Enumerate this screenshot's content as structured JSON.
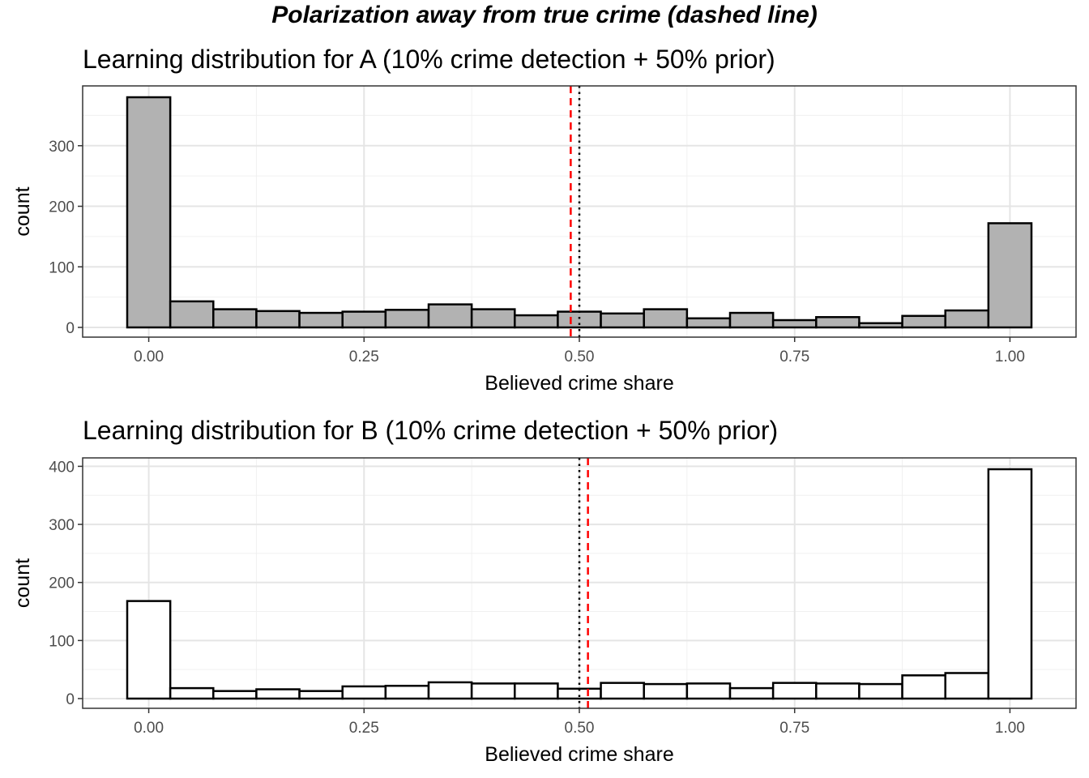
{
  "title": "Polarization away from true crime (dashed line)",
  "chart_data": [
    {
      "type": "bar",
      "title": "Learning distribution for A (10% crime detection + 50% prior)",
      "xlabel": "Believed crime share",
      "ylabel": "count",
      "xlim": [
        -0.025,
        1.025
      ],
      "ylim": [
        0,
        380
      ],
      "x_ticks": [
        0,
        0.25,
        0.5,
        0.75,
        1
      ],
      "x_tick_labels": [
        "0.00",
        "0.25",
        "0.50",
        "0.75",
        "1.00"
      ],
      "y_ticks": [
        0,
        100,
        200,
        300
      ],
      "y_tick_labels": [
        "0",
        "100",
        "200",
        "300"
      ],
      "bin_width": 0.05,
      "bin_centers": [
        0,
        0.05,
        0.1,
        0.15,
        0.2,
        0.25,
        0.3,
        0.35,
        0.4,
        0.45,
        0.5,
        0.55,
        0.6,
        0.65,
        0.7,
        0.75,
        0.8,
        0.85,
        0.9,
        0.95,
        1
      ],
      "values": [
        380,
        43,
        30,
        27,
        24,
        26,
        29,
        38,
        30,
        20,
        26,
        23,
        30,
        15,
        24,
        12,
        17,
        7,
        19,
        28,
        172
      ],
      "fill": "#b2b2b2",
      "dashed_line_x": 0.49,
      "dotted_line_x": 0.5,
      "dashed_color": "#ff0000",
      "dotted_color": "#000000",
      "grid": true
    },
    {
      "type": "bar",
      "title": "Learning distribution for B (10% crime detection + 50% prior)",
      "xlabel": "Believed crime share",
      "ylabel": "count",
      "xlim": [
        -0.025,
        1.025
      ],
      "ylim": [
        0,
        395
      ],
      "x_ticks": [
        0,
        0.25,
        0.5,
        0.75,
        1
      ],
      "x_tick_labels": [
        "0.00",
        "0.25",
        "0.50",
        "0.75",
        "1.00"
      ],
      "y_ticks": [
        0,
        100,
        200,
        300,
        400
      ],
      "y_tick_labels": [
        "0",
        "100",
        "200",
        "300",
        "400"
      ],
      "bin_width": 0.05,
      "bin_centers": [
        0,
        0.05,
        0.1,
        0.15,
        0.2,
        0.25,
        0.3,
        0.35,
        0.4,
        0.45,
        0.5,
        0.55,
        0.6,
        0.65,
        0.7,
        0.75,
        0.8,
        0.85,
        0.9,
        0.95,
        1
      ],
      "values": [
        168,
        18,
        13,
        16,
        13,
        21,
        22,
        28,
        26,
        26,
        17,
        27,
        25,
        26,
        18,
        27,
        26,
        25,
        40,
        44,
        395
      ],
      "fill": "#ffffff",
      "dashed_line_x": 0.51,
      "dotted_line_x": 0.5,
      "dashed_color": "#ff0000",
      "dotted_color": "#000000",
      "grid": true
    }
  ]
}
